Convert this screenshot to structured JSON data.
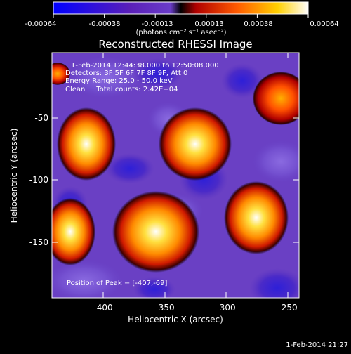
{
  "colorbar": {
    "ticks": [
      "-0.00064",
      "-0.00038",
      "-0.00013",
      "0.00013",
      "0.00038",
      "0.00064"
    ],
    "units": "(photons cm⁻² s⁻¹ asec⁻²)",
    "colors": [
      "#0000ff",
      "#5a1fb8",
      "#6a3cc8",
      "#000000",
      "#c00000",
      "#ff6000",
      "#ffd000",
      "#ffffff"
    ]
  },
  "title": "Reconstructed RHESSI Image",
  "info": {
    "time": "1-Feb-2014 12:44:38.000 to 12:50:08.000",
    "detectors": "Detectors: 3F 5F 6F 7F 8F 9F, Att 0",
    "energy": "Energy Range: 25.0 - 50.0 keV",
    "clean": "Clean     Total counts: 2.42E+04"
  },
  "peak": "Position of Peak = [-407,-69]",
  "axes": {
    "xlabel": "Heliocentric X (arcsec)",
    "ylabel": "Heliocentric Y (arcsec)",
    "xticks": [
      "-400",
      "-350",
      "-300",
      "-250"
    ],
    "yticks": [
      "-50",
      "-100",
      "-150"
    ]
  },
  "timestamp": "1-Feb-2014 21:27"
}
